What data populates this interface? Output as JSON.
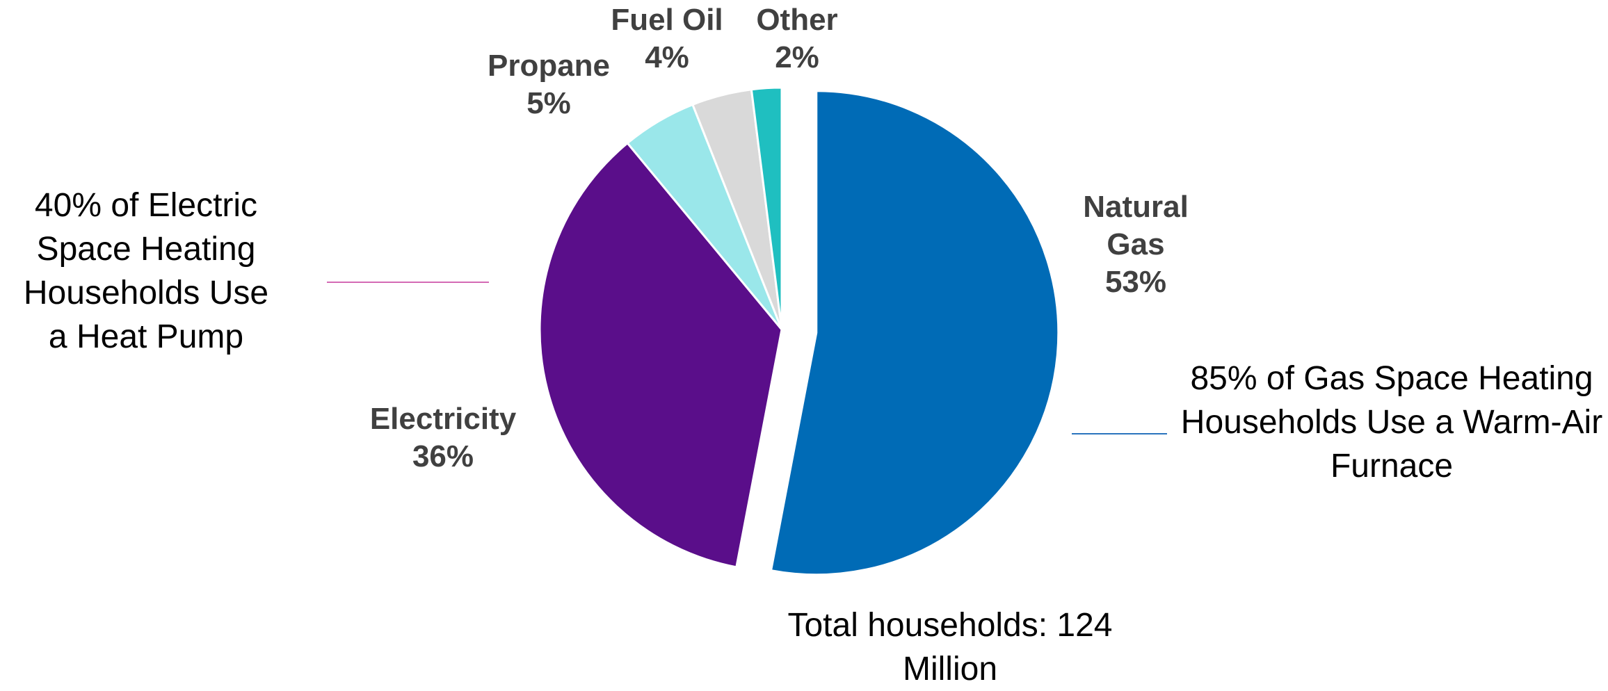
{
  "chart_data": {
    "type": "pie",
    "categories": [
      "Natural Gas",
      "Electricity",
      "Propane",
      "Fuel Oil",
      "Other"
    ],
    "values": [
      53,
      36,
      5,
      4,
      2
    ],
    "value_labels": [
      "53%",
      "36%",
      "5%",
      "4%",
      "2%"
    ],
    "colors": [
      "#006bb6",
      "#5a0e8a",
      "#9ae7ea",
      "#d9d9d9",
      "#1fbfc0"
    ],
    "annotations": [
      {
        "text": "40% of Electric Space Heating Households Use a Heat Pump",
        "color": "#d46ab4"
      },
      {
        "text": "85% of Gas Space Heating Households Use a Warm-Air Furnace",
        "color": "#2a74bd"
      }
    ],
    "footnote": "Total households: 124 Million"
  }
}
